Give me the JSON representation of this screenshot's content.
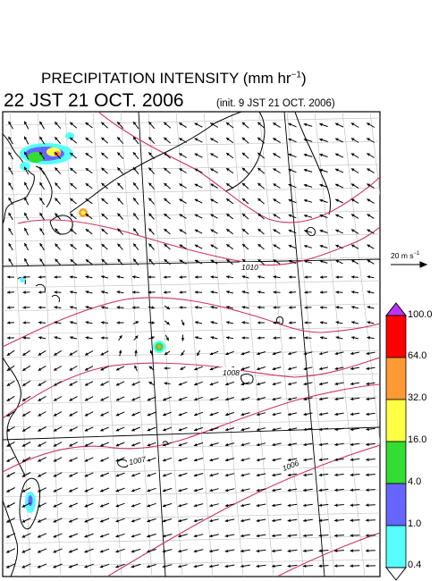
{
  "header": {
    "title": "PRECIPITATION INTENSITY (mm hr",
    "title_exp": "−1",
    "title_close": ")",
    "valid_time": "22 JST 21 OCT. 2006",
    "init_time": "(init. 9 JST 21 OCT. 2006)"
  },
  "reference_vector": {
    "label": "20 m s",
    "exp": "−1"
  },
  "isobar_labels": [
    "1010",
    "1008",
    "1007",
    "1006"
  ],
  "colorbar": {
    "labels": [
      "100.0",
      "64.0",
      "32.0",
      "16.0",
      "4.0",
      "1.0",
      "0.4"
    ],
    "colors": [
      "#ff0000",
      "#ff9933",
      "#ffff44",
      "#33dd33",
      "#6666ff",
      "#55ffff"
    ],
    "over_color": "#bb33ff"
  },
  "colors": {
    "isobar": "#cc3366",
    "coast": "#000000",
    "grid": "#bbbbbb"
  }
}
